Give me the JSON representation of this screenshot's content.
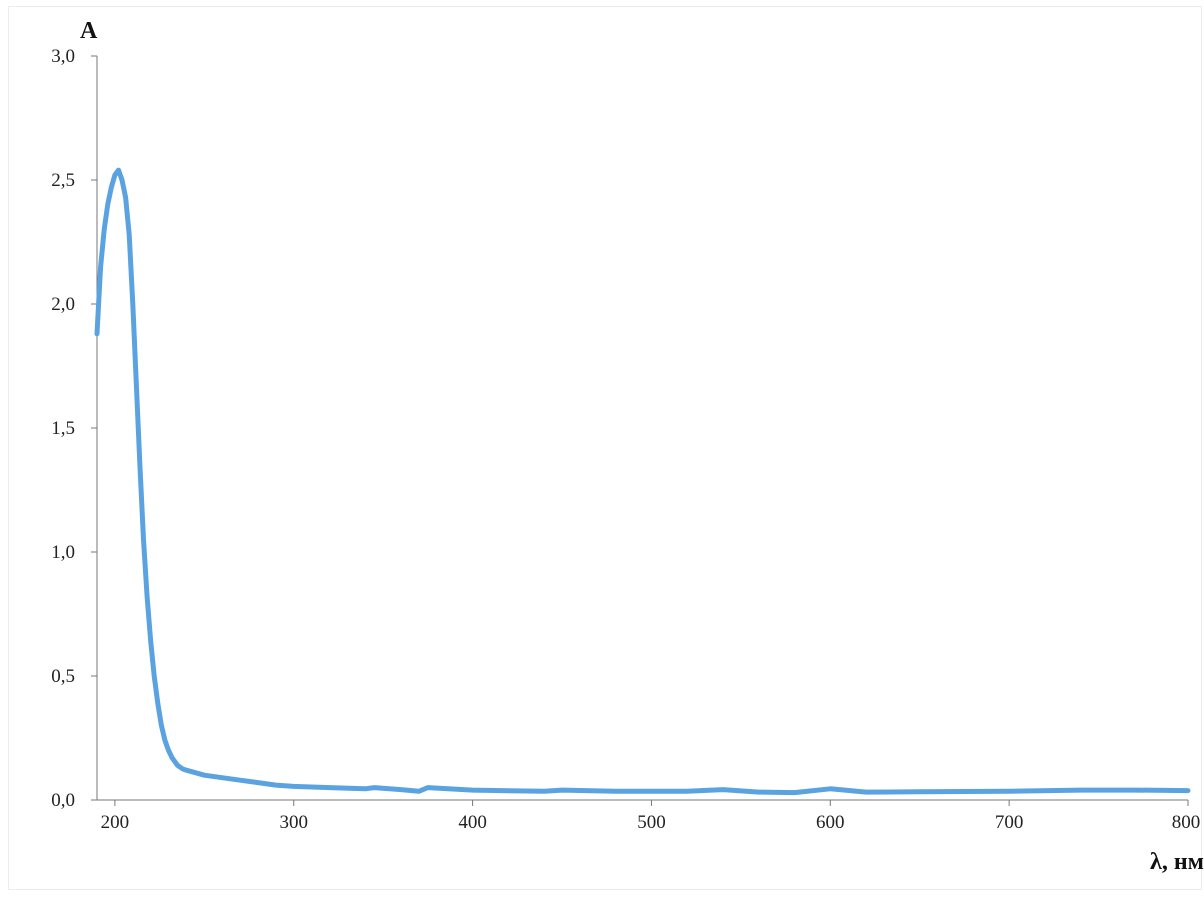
{
  "chart_data": {
    "type": "line",
    "title": "",
    "xlabel": "λ, нм",
    "ylabel": "A",
    "xlim": [
      190,
      800
    ],
    "ylim": [
      0,
      3.0
    ],
    "x_ticks": [
      200,
      300,
      400,
      500,
      600,
      700,
      800
    ],
    "y_ticks": [
      0.0,
      0.5,
      1.0,
      1.5,
      2.0,
      2.5,
      3.0
    ],
    "x_tick_labels": [
      "200",
      "300",
      "400",
      "500",
      "600",
      "700",
      "800"
    ],
    "y_tick_labels": [
      "0,0",
      "0,5",
      "1,0",
      "1,5",
      "2,0",
      "2,5",
      "3,0"
    ],
    "grid": false,
    "legend": "none",
    "series_color": "#5ba3e0",
    "series": [
      {
        "x": [
          190,
          192,
          194,
          196,
          198,
          200,
          202,
          204,
          206,
          208,
          210,
          212,
          214,
          216,
          218,
          220,
          222,
          224,
          226,
          228,
          230,
          232,
          235,
          238,
          240,
          245,
          250,
          260,
          270,
          280,
          290,
          300,
          320,
          340,
          345,
          360,
          370,
          375,
          400,
          440,
          450,
          480,
          500,
          520,
          540,
          560,
          580,
          600,
          620,
          650,
          700,
          740,
          770,
          800
        ],
        "y": [
          1.88,
          2.15,
          2.3,
          2.4,
          2.47,
          2.52,
          2.54,
          2.5,
          2.43,
          2.28,
          2.0,
          1.68,
          1.35,
          1.05,
          0.82,
          0.64,
          0.5,
          0.39,
          0.3,
          0.24,
          0.2,
          0.17,
          0.14,
          0.125,
          0.12,
          0.11,
          0.1,
          0.09,
          0.08,
          0.07,
          0.06,
          0.055,
          0.05,
          0.045,
          0.05,
          0.042,
          0.035,
          0.05,
          0.04,
          0.035,
          0.04,
          0.035,
          0.035,
          0.035,
          0.042,
          0.032,
          0.03,
          0.045,
          0.032,
          0.033,
          0.035,
          0.04,
          0.04,
          0.038
        ]
      }
    ]
  }
}
